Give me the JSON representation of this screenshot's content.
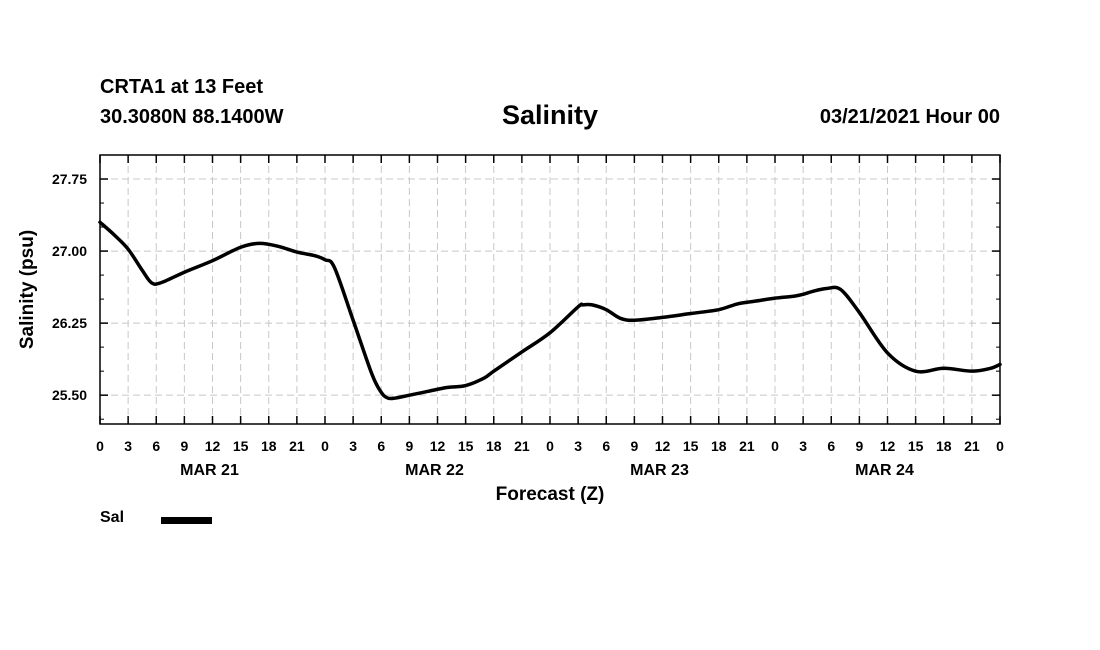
{
  "header": {
    "station": "CRTA1 at 13 Feet",
    "coords": "30.3080N 88.1400W",
    "title": "Salinity",
    "datetime": "03/21/2021 Hour 00"
  },
  "legend": {
    "label": "Sal",
    "color": "#000000"
  },
  "chart_data": {
    "type": "line",
    "title": "Salinity",
    "xlabel": "Forecast (Z)",
    "ylabel": "Salinity (psu)",
    "ylim": [
      25.2,
      28.0
    ],
    "yticks": [
      "25.50",
      "26.25",
      "27.00",
      "27.75"
    ],
    "ytick_values": [
      25.5,
      26.25,
      27.0,
      27.75
    ],
    "xlim": [
      0,
      96
    ],
    "xticks": [
      "0",
      "3",
      "6",
      "9",
      "12",
      "15",
      "18",
      "21",
      "0",
      "3",
      "6",
      "9",
      "12",
      "15",
      "18",
      "21",
      "0",
      "3",
      "6",
      "9",
      "12",
      "15",
      "18",
      "21",
      "0",
      "3",
      "6",
      "9",
      "12",
      "15",
      "18",
      "21",
      "0"
    ],
    "day_labels": [
      "MAR 21",
      "MAR 22",
      "MAR 23",
      "MAR 24"
    ],
    "grid": true,
    "series": [
      {
        "name": "Sal",
        "color": "#000000",
        "x": [
          0,
          1.5,
          3,
          4.5,
          5.5,
          6.5,
          9,
          12,
          15,
          17,
          19,
          21,
          23,
          24,
          25,
          27,
          29,
          30,
          30.7,
          31.5,
          33,
          35,
          37,
          39,
          41,
          42,
          45,
          48,
          51,
          51.5,
          52.5,
          54,
          55.5,
          57,
          60,
          63,
          66,
          68,
          70,
          72,
          74,
          75,
          76,
          77.5,
          79,
          81,
          84,
          87,
          90,
          93,
          95,
          96
        ],
        "y": [
          27.3,
          27.17,
          27.02,
          26.8,
          26.67,
          26.67,
          26.78,
          26.9,
          27.04,
          27.08,
          27.05,
          26.99,
          26.95,
          26.91,
          26.83,
          26.28,
          25.72,
          25.53,
          25.47,
          25.47,
          25.5,
          25.54,
          25.58,
          25.6,
          25.68,
          25.75,
          25.95,
          26.15,
          26.42,
          26.44,
          26.44,
          26.39,
          26.3,
          26.28,
          26.31,
          26.35,
          26.39,
          26.45,
          26.48,
          26.51,
          26.53,
          26.55,
          26.58,
          26.61,
          26.6,
          26.36,
          25.94,
          25.75,
          25.78,
          25.75,
          25.78,
          25.82
        ]
      }
    ]
  }
}
